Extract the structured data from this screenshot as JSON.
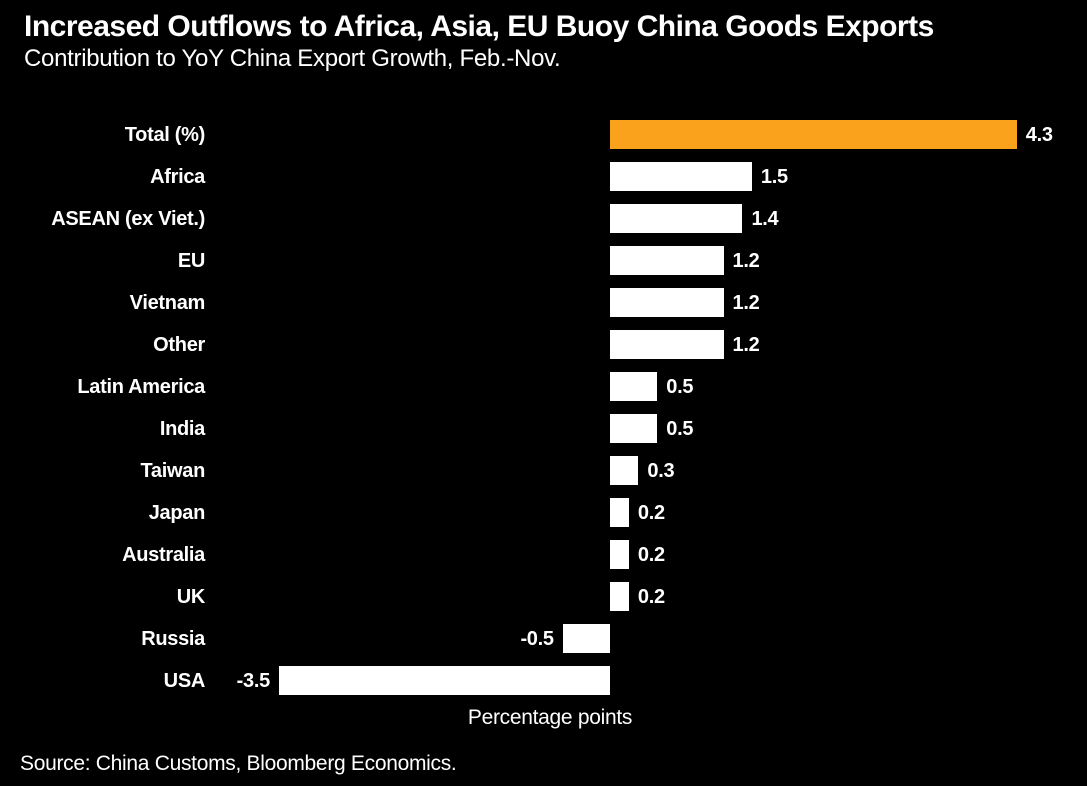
{
  "source": "Source: China Customs, Bloomberg Economics.",
  "colors": {
    "background": "#000000",
    "bar_default": "#FFFFFF",
    "bar_highlight": "#FAA21B",
    "text": "#FFFFFF"
  },
  "chart_data": {
    "type": "bar",
    "orientation": "horizontal",
    "title": "Increased Outflows to Africa, Asia, EU Buoy China Goods Exports",
    "subtitle": "Contribution to YoY China Export Growth, Feb.-Nov.",
    "xlabel": "Percentage points",
    "categories": [
      "Total (%)",
      "Africa",
      "ASEAN (ex Viet.)",
      "EU",
      "Vietnam",
      "Other",
      "Latin America",
      "India",
      "Taiwan",
      "Japan",
      "Australia",
      "UK",
      "Russia",
      "USA"
    ],
    "values": [
      4.3,
      1.5,
      1.4,
      1.2,
      1.2,
      1.2,
      0.5,
      0.5,
      0.3,
      0.2,
      0.2,
      0.2,
      -0.5,
      -3.5
    ],
    "value_labels": [
      "4.3",
      "1.5",
      "1.4",
      "1.2",
      "1.2",
      "1.2",
      "0.5",
      "0.5",
      "0.3",
      "0.2",
      "0.2",
      "0.2",
      "-0.5",
      "-3.5"
    ],
    "highlight_index": 0,
    "highlight_category": "Total (%)",
    "xlim": [
      -3.5,
      4.3
    ],
    "grid": false,
    "legend": false,
    "data_labels_shown": true
  }
}
